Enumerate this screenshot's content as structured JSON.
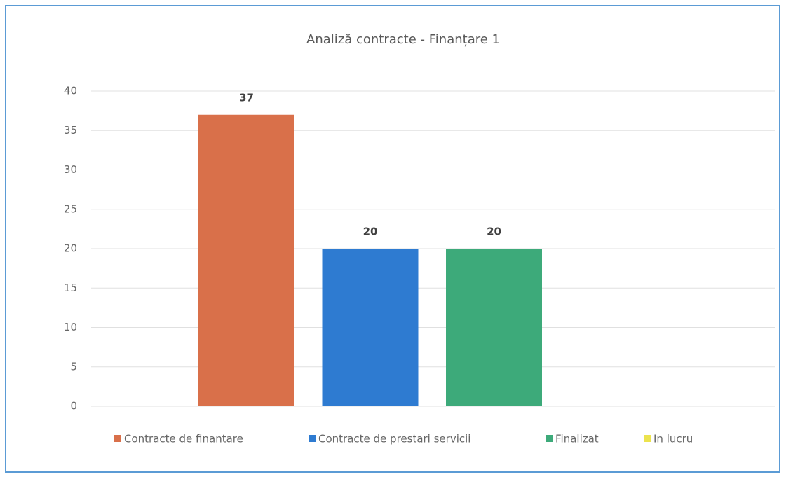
{
  "chart_data": {
    "type": "bar",
    "title": "Analiză contracte - Finanțare 1",
    "categories": [
      null
    ],
    "series": [
      {
        "name": "Contracte de finantare",
        "color": "#d9704a",
        "values": [
          37
        ]
      },
      {
        "name": "Contracte de prestari servicii",
        "color": "#2e7bd1",
        "values": [
          20
        ]
      },
      {
        "name": "Finalizat",
        "color": "#3daa7a",
        "values": [
          20
        ]
      },
      {
        "name": "In lucru",
        "color": "#ece34e",
        "values": [
          null
        ]
      }
    ],
    "ylim": [
      0,
      40
    ],
    "yticks": [
      0,
      5,
      10,
      15,
      20,
      25,
      30,
      35,
      40
    ],
    "grid": true,
    "legend": "bottom"
  }
}
